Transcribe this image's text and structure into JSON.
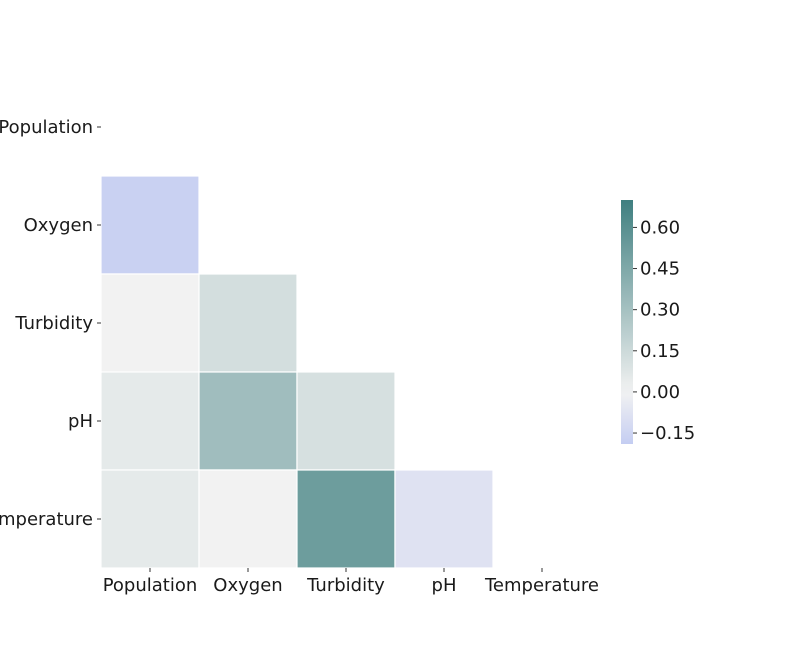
{
  "chart_data": {
    "type": "heatmap",
    "title": "",
    "xlabel": "",
    "ylabel": "",
    "variables": [
      "Population",
      "Oxygen",
      "Turbidity",
      "pH",
      "Temperature"
    ],
    "x_tick_labels": [
      "Population",
      "Oxygen",
      "Turbidity",
      "pH",
      "Temperature"
    ],
    "y_tick_labels": [
      "Population",
      "Oxygen",
      "Turbidity",
      "pH",
      "Temperature"
    ],
    "mask": "upper-triangle-including-diagonal",
    "cells": [
      {
        "row": "Oxygen",
        "col": "Population",
        "value": -0.17
      },
      {
        "row": "Turbidity",
        "col": "Population",
        "value": 0.0
      },
      {
        "row": "Turbidity",
        "col": "Oxygen",
        "value": 0.12
      },
      {
        "row": "pH",
        "col": "Population",
        "value": 0.05
      },
      {
        "row": "pH",
        "col": "Oxygen",
        "value": 0.32
      },
      {
        "row": "pH",
        "col": "Turbidity",
        "value": 0.11
      },
      {
        "row": "Temperature",
        "col": "Population",
        "value": 0.05
      },
      {
        "row": "Temperature",
        "col": "Oxygen",
        "value": 0.0
      },
      {
        "row": "Temperature",
        "col": "Turbidity",
        "value": 0.52
      },
      {
        "row": "Temperature",
        "col": "pH",
        "value": -0.08
      }
    ],
    "colorbar": {
      "vmin": -0.19,
      "vmax": 0.7,
      "ticks": [
        -0.15,
        0.0,
        0.15,
        0.3,
        0.45,
        0.6
      ],
      "tick_labels": [
        "−0.15",
        "0.00",
        "0.15",
        "0.30",
        "0.45",
        "0.60"
      ],
      "colormap": "diverging",
      "color_negative": "#c4cdf2",
      "color_center": "#f2f2f2",
      "color_positive": "#3f7f80"
    },
    "grid": false,
    "legend": "colorbar-right"
  }
}
